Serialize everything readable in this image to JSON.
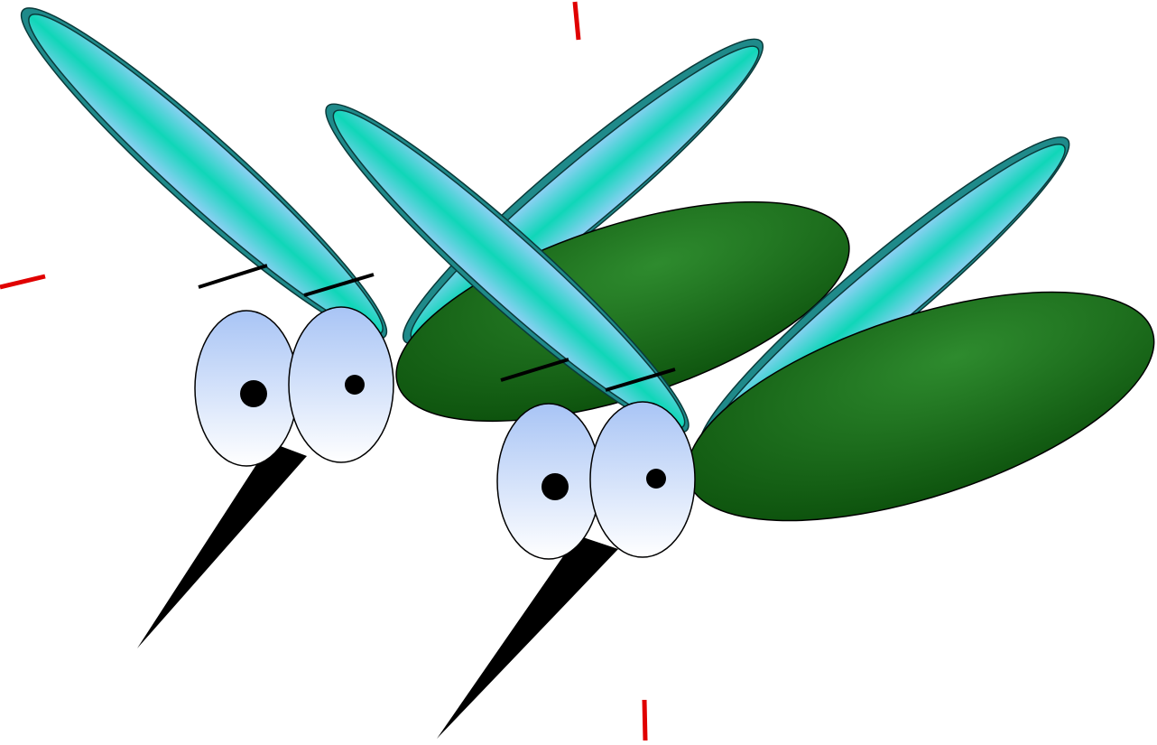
{
  "scene": {
    "subject": "two-cartoon-mosquitoes",
    "colors": {
      "background": "#ffffff",
      "body_light": "#2e8b2e",
      "body_dark": "#0a4d0a",
      "wing_center": "#0fd6b8",
      "wing_edge": "#8fd0f5",
      "wing_rim": "#1f8a8a",
      "eye_top": "#a8c4f5",
      "eye_bottom": "#ffffff",
      "pupil": "#000000",
      "proboscis": "#000000",
      "speed_marks": "#e00000"
    }
  }
}
